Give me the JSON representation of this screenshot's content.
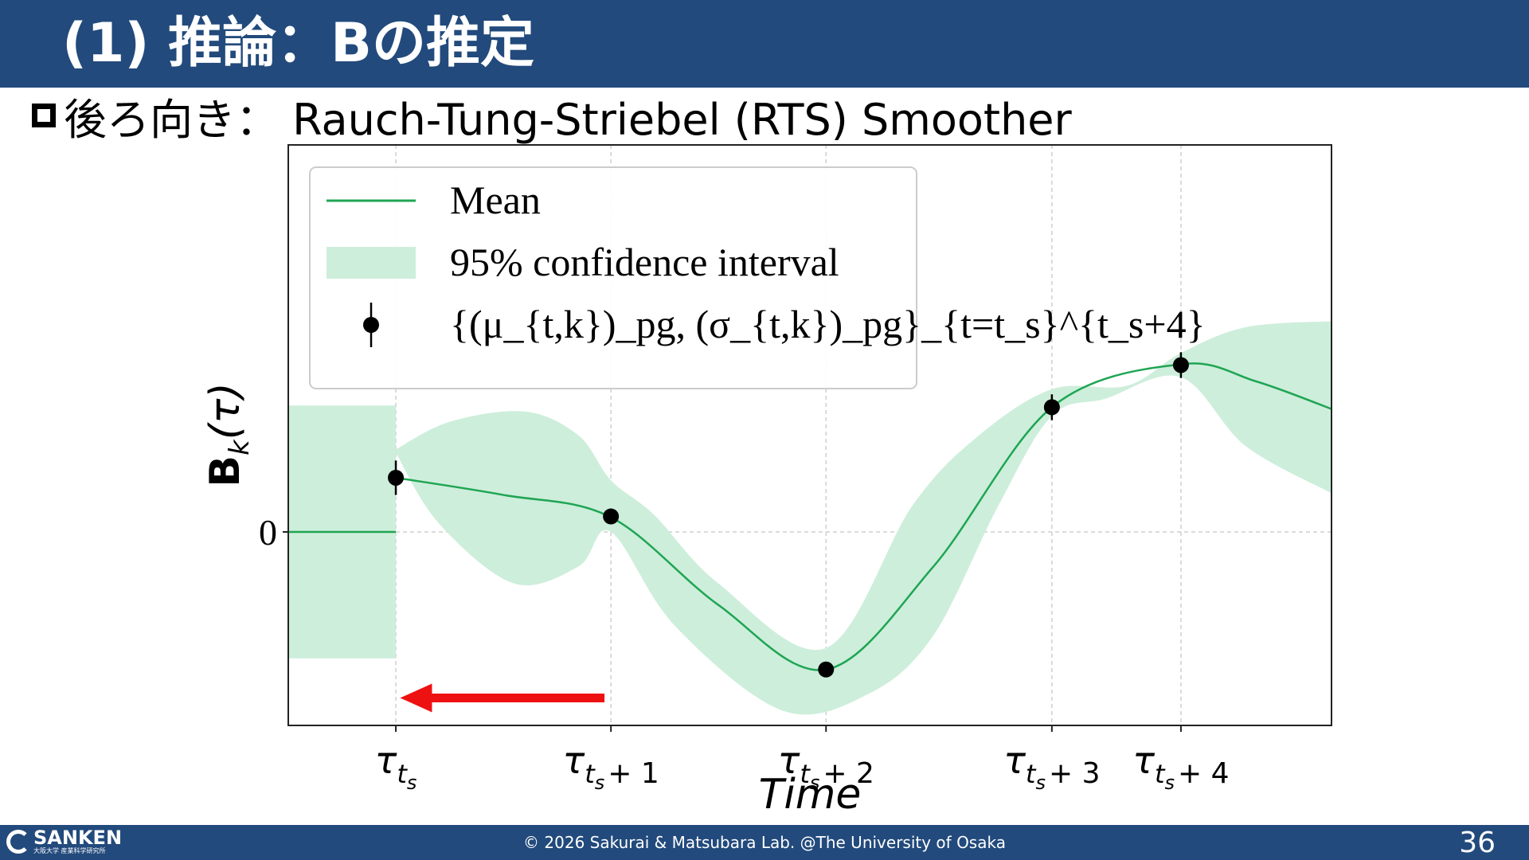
{
  "header": {
    "title": "(1) 推論：Bの推定"
  },
  "subtitle": {
    "text": "後ろ向き： Rauch-Tung-Striebel (RTS) Smoother"
  },
  "chart_data": {
    "type": "line",
    "xlabel": "Time",
    "ylabel_main": "B",
    "ylabel_sub": "k",
    "ylabel_tail": "(τ)",
    "grid": true,
    "legend_position": "top-left",
    "ytick_labels": [
      {
        "value": 0,
        "label": "0"
      }
    ],
    "xlim": [
      -0.5,
      4.35
    ],
    "ylim": [
      -2.25,
      4.5
    ],
    "xticks": [
      {
        "x": 0,
        "base": "τ",
        "sub": "t",
        "subsub": "s",
        "tail": ""
      },
      {
        "x": 1,
        "base": "τ",
        "sub": "t",
        "subsub": "s",
        "tail": "+ 1"
      },
      {
        "x": 2,
        "base": "τ",
        "sub": "t",
        "subsub": "s",
        "tail": "+ 2"
      },
      {
        "x": 3.05,
        "base": "τ",
        "sub": "t",
        "subsub": "s",
        "tail": "+ 3"
      },
      {
        "x": 3.65,
        "base": "τ",
        "sub": "t",
        "subsub": "s",
        "tail": "+ 4"
      }
    ],
    "legend": [
      {
        "name": "Mean",
        "kind": "line"
      },
      {
        "name": "95% confidence interval",
        "kind": "band"
      },
      {
        "name": "{(μ_{t,k})_pg, (σ_{t,k})_pg}_{t=t_s}^{t_s+4}",
        "kind": "point"
      }
    ],
    "mean_before": [
      [
        -0.5,
        0
      ],
      [
        0,
        0
      ]
    ],
    "band_before": {
      "x": [
        -0.5,
        0
      ],
      "lower": -1.47,
      "upper": 1.47
    },
    "mean": [
      [
        0,
        0.63
      ],
      [
        0.5,
        0.43
      ],
      [
        1,
        0.17
      ],
      [
        1.5,
        -0.85
      ],
      [
        2,
        -1.6
      ],
      [
        2.5,
        -0.4
      ],
      [
        3.05,
        1.45
      ],
      [
        3.65,
        1.95
      ],
      [
        4.0,
        1.75
      ],
      [
        4.35,
        1.43
      ]
    ],
    "band_upper": [
      [
        0,
        0.96
      ],
      [
        0.25,
        1.28
      ],
      [
        0.6,
        1.4
      ],
      [
        0.85,
        1.12
      ],
      [
        1,
        0.6
      ],
      [
        1.2,
        0.2
      ],
      [
        1.5,
        -0.6
      ],
      [
        2,
        -1.35
      ],
      [
        2.4,
        0.3
      ],
      [
        2.7,
        1.1
      ],
      [
        3.05,
        1.66
      ],
      [
        3.4,
        1.7
      ],
      [
        3.65,
        2.08
      ],
      [
        3.95,
        2.38
      ],
      [
        4.35,
        2.45
      ]
    ],
    "band_lower": [
      [
        0,
        0.92
      ],
      [
        0.2,
        0.1
      ],
      [
        0.55,
        -0.6
      ],
      [
        0.85,
        -0.4
      ],
      [
        1,
        0.0
      ],
      [
        1.3,
        -1.1
      ],
      [
        1.8,
        -2.08
      ],
      [
        2.2,
        -1.88
      ],
      [
        2.5,
        -1.2
      ],
      [
        2.8,
        0.3
      ],
      [
        3.05,
        1.35
      ],
      [
        3.3,
        1.55
      ],
      [
        3.65,
        1.8
      ],
      [
        3.95,
        1.0
      ],
      [
        4.35,
        0.45
      ]
    ],
    "points": [
      {
        "x": 0,
        "y": 0.63,
        "err": 0.2
      },
      {
        "x": 1,
        "y": 0.18,
        "err": 0.08
      },
      {
        "x": 2,
        "y": -1.6,
        "err": 0.06
      },
      {
        "x": 3.05,
        "y": 1.45,
        "err": 0.15
      },
      {
        "x": 3.65,
        "y": 1.94,
        "err": 0.15
      }
    ],
    "annotation_arrow": {
      "from_x": 0.97,
      "to_x": 0.02,
      "y": -1.93,
      "color": "#ee1111"
    },
    "colors": {
      "mean": "#1fa553",
      "band": "#cdeedb",
      "point": "#000000",
      "grid": "#cfcfcf"
    }
  },
  "footer": {
    "logo_main": "SANKEN",
    "logo_sub": "大阪大学 産業科学研究所",
    "copyright": "© 2026 Sakurai & Matsubara Lab. @The University of Osaka",
    "page": "36"
  }
}
